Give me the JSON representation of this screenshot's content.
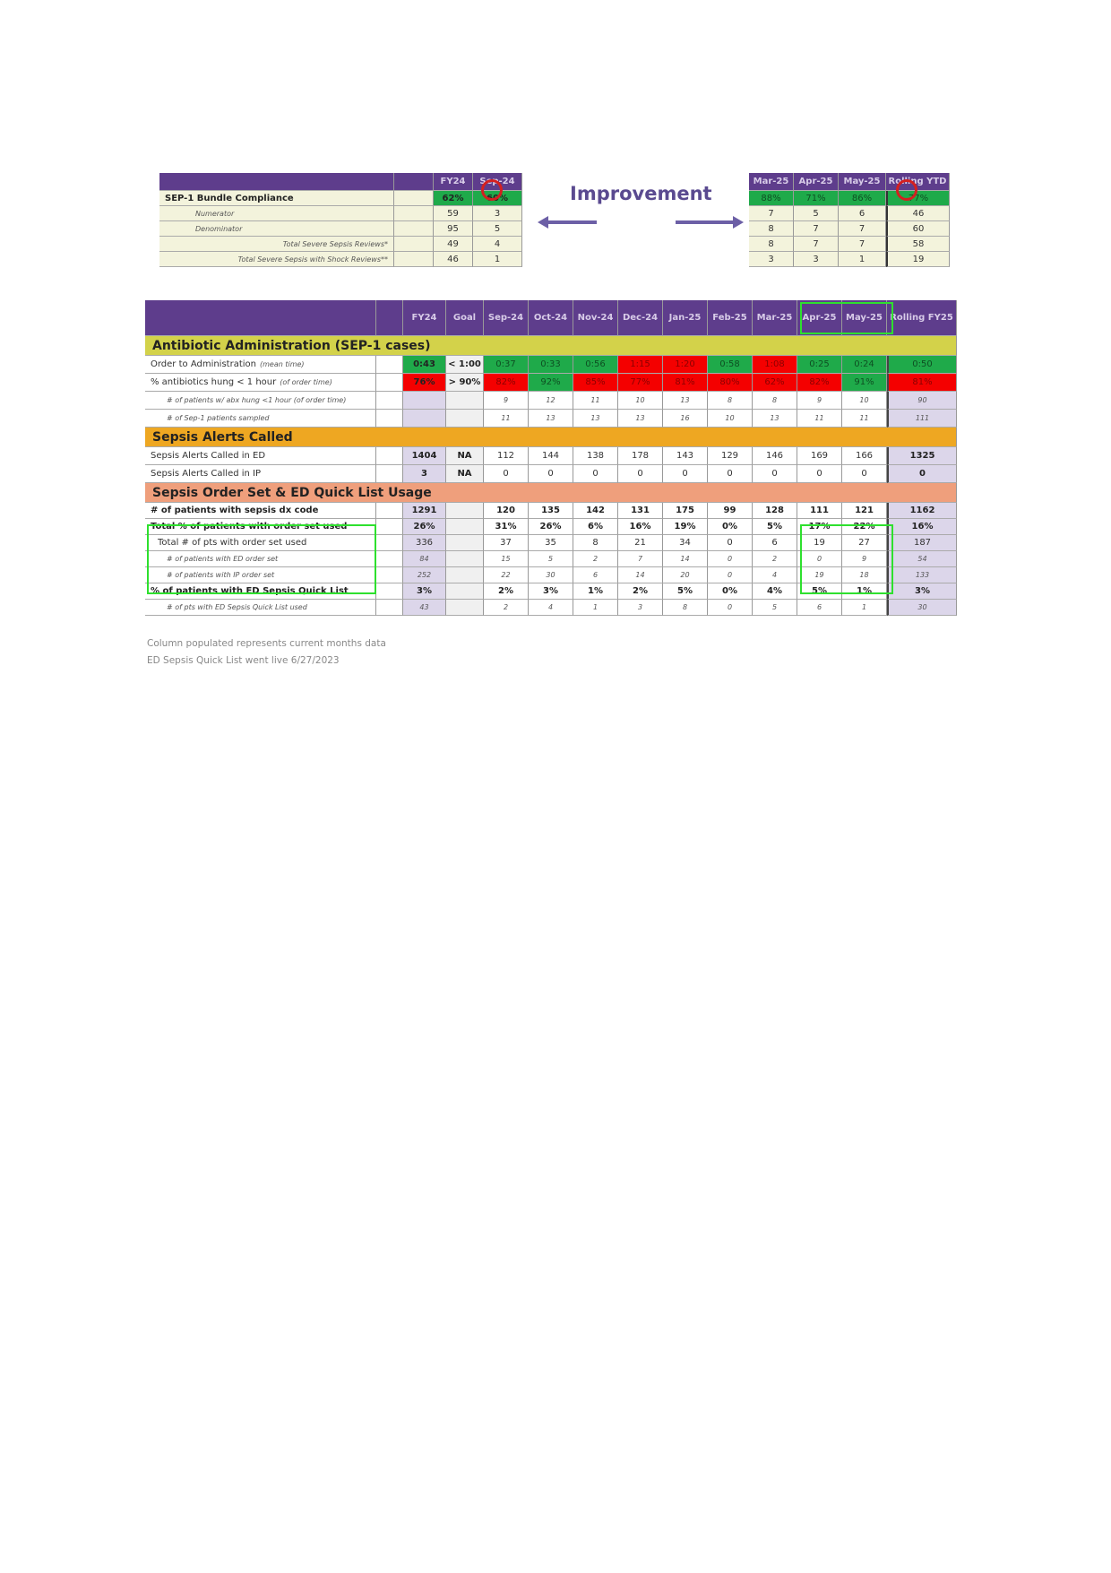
{
  "top_left": {
    "headers": [
      "",
      "",
      "FY24",
      "Sep-24"
    ],
    "rows": [
      {
        "label": "SEP-1 Bundle Compliance",
        "values": [
          "62%",
          "60%"
        ],
        "status": [
          "green",
          "green"
        ]
      },
      {
        "label": "Numerator",
        "values": [
          "59",
          "3"
        ]
      },
      {
        "label": "Denominator",
        "values": [
          "95",
          "5"
        ]
      },
      {
        "label": "Total Severe Sepsis Reviews*",
        "values": [
          "49",
          "4"
        ]
      },
      {
        "label": "Total Severe Sepsis with Shock Reviews**",
        "values": [
          "46",
          "1"
        ]
      }
    ]
  },
  "improvement": {
    "label": "Improvement",
    "left_arrow": "arrow-left-icon",
    "right_arrow": "arrow-right-icon"
  },
  "top_right": {
    "headers": [
      "Mar-25",
      "Apr-25",
      "May-25",
      "Rolling YTD"
    ],
    "rows": [
      {
        "values": [
          "88%",
          "71%",
          "86%",
          "77%"
        ],
        "status": [
          "green",
          "green",
          "green",
          "green"
        ]
      },
      {
        "values": [
          "7",
          "5",
          "6",
          "46"
        ]
      },
      {
        "values": [
          "8",
          "7",
          "7",
          "60"
        ]
      },
      {
        "values": [
          "8",
          "7",
          "7",
          "58"
        ]
      },
      {
        "values": [
          "3",
          "3",
          "1",
          "19"
        ]
      }
    ]
  },
  "main": {
    "headers": [
      "",
      "",
      "FY24",
      "Goal",
      "Sep-24",
      "Oct-24",
      "Nov-24",
      "Dec-24",
      "Jan-25",
      "Feb-25",
      "Mar-25",
      "Apr-25",
      "May-25",
      "Rolling FY25"
    ],
    "rows": [
      {
        "section": "Antibiotic Administration (SEP-1 cases)",
        "color": "#d3d24a"
      },
      {
        "label": "Order to Administration",
        "label_note": "(mean time)",
        "values": [
          "0:43",
          "< 1:00",
          "0:37",
          "0:33",
          "0:56",
          "1:15",
          "1:20",
          "0:58",
          "1:08",
          "0:25",
          "0:24",
          "0:50"
        ],
        "status": [
          "green",
          "",
          "green",
          "green",
          "green",
          "red",
          "red",
          "green",
          "red",
          "green",
          "green",
          "green"
        ]
      },
      {
        "label": "% antibiotics hung < 1 hour",
        "label_note": "(of order time)",
        "values": [
          "76%",
          "> 90%",
          "82%",
          "92%",
          "85%",
          "77%",
          "81%",
          "80%",
          "62%",
          "82%",
          "91%",
          "81%"
        ],
        "status": [
          "red",
          "",
          "red",
          "green",
          "red",
          "red",
          "red",
          "red",
          "red",
          "red",
          "green",
          "red"
        ]
      },
      {
        "label": "# of patients w/ abx hung <1 hour (of order time)",
        "values": [
          "",
          "",
          "9",
          "12",
          "11",
          "10",
          "13",
          "8",
          "8",
          "9",
          "10",
          "90"
        ]
      },
      {
        "label": "# of Sep-1 patients sampled",
        "values": [
          "",
          "",
          "11",
          "13",
          "13",
          "13",
          "16",
          "10",
          "13",
          "11",
          "11",
          "111"
        ]
      },
      {
        "section": "Sepsis Alerts Called",
        "color": "#eea722"
      },
      {
        "label": "Sepsis Alerts Called in ED",
        "values": [
          "1404",
          "NA",
          "112",
          "144",
          "138",
          "178",
          "143",
          "129",
          "146",
          "169",
          "166",
          "1325"
        ]
      },
      {
        "label": "Sepsis Alerts Called in IP",
        "values": [
          "3",
          "NA",
          "0",
          "0",
          "0",
          "0",
          "0",
          "0",
          "0",
          "0",
          "0",
          "0"
        ]
      },
      {
        "section": "Sepsis Order Set & ED Quick List Usage",
        "color": "#ef9f7c"
      },
      {
        "label": "# of patients with sepsis dx code",
        "values": [
          "1291",
          "",
          "120",
          "135",
          "142",
          "131",
          "175",
          "99",
          "128",
          "111",
          "121",
          "1162"
        ]
      },
      {
        "label": "Total % of patients with order set used",
        "values": [
          "26%",
          "",
          "31%",
          "26%",
          "6%",
          "16%",
          "19%",
          "0%",
          "5%",
          "17%",
          "22%",
          "16%"
        ]
      },
      {
        "label": "Total # of pts with order set used",
        "values": [
          "336",
          "",
          "37",
          "35",
          "8",
          "21",
          "34",
          "0",
          "6",
          "19",
          "27",
          "187"
        ]
      },
      {
        "label": "# of patients with ED order set",
        "values": [
          "84",
          "",
          "15",
          "5",
          "2",
          "7",
          "14",
          "0",
          "2",
          "0",
          "9",
          "54"
        ]
      },
      {
        "label": "# of patients with IP order set",
        "values": [
          "252",
          "",
          "22",
          "30",
          "6",
          "14",
          "20",
          "0",
          "4",
          "19",
          "18",
          "133"
        ]
      },
      {
        "label": "% of patients with ED Sepsis Quick List",
        "values": [
          "3%",
          "",
          "2%",
          "3%",
          "1%",
          "2%",
          "5%",
          "0%",
          "4%",
          "5%",
          "1%",
          "3%"
        ]
      },
      {
        "label": "# of pts with ED Sepsis Quick List used",
        "values": [
          "43",
          "",
          "2",
          "4",
          "1",
          "3",
          "8",
          "0",
          "5",
          "6",
          "1",
          "30"
        ]
      }
    ]
  },
  "notes": [
    "Column populated represents current months data",
    "ED Sepsis Quick List went live 6/27/2023"
  ]
}
